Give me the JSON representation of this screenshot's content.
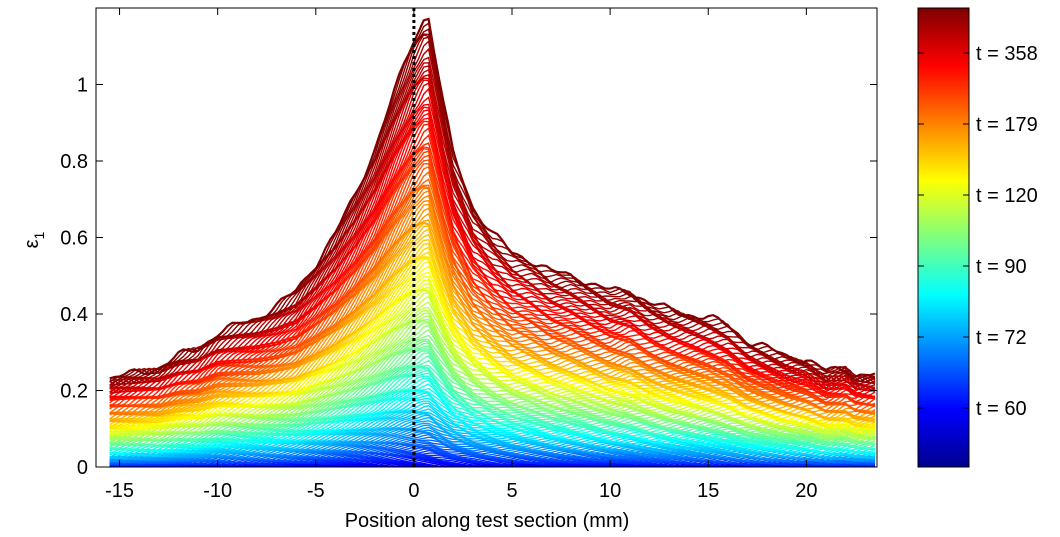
{
  "chart_data": {
    "type": "line",
    "title": "",
    "xlabel": "Position along test section (mm)",
    "ylabel": "ε",
    "ylabel_subscript": "1",
    "xlim": [
      -16.2,
      23.6
    ],
    "ylim": [
      0,
      1.2
    ],
    "xticks": [
      -15,
      -10,
      -5,
      0,
      5,
      10,
      15,
      20
    ],
    "xtick_labels": [
      "-15",
      "-10",
      "-5",
      "0",
      "5",
      "10",
      "15",
      "20"
    ],
    "yticks": [
      0,
      0.2,
      0.4,
      0.6,
      0.8,
      1.0
    ],
    "ytick_labels": [
      "0",
      "0.2",
      "0.4",
      "0.6",
      "0.8",
      "1"
    ],
    "grid": false,
    "colormap": "jet",
    "curve_count": 150,
    "reference_line": {
      "x": 0,
      "style": "dotted",
      "color": "#000000"
    },
    "envelope": {
      "x": [
        -15.5,
        -13,
        -12,
        -11,
        -10,
        -8,
        -7,
        -6,
        -5,
        -4,
        -3,
        -2,
        -1,
        0,
        0.7,
        1.5,
        2,
        3,
        4,
        5,
        6,
        7,
        8,
        9,
        10,
        11,
        12,
        13,
        14,
        15,
        16,
        17,
        18,
        19,
        20,
        21,
        22,
        22.5,
        23,
        23.6
      ],
      "y": [
        0.23,
        0.26,
        0.29,
        0.31,
        0.35,
        0.39,
        0.42,
        0.46,
        0.53,
        0.61,
        0.71,
        0.83,
        0.98,
        1.12,
        1.19,
        0.95,
        0.82,
        0.68,
        0.61,
        0.56,
        0.54,
        0.51,
        0.5,
        0.48,
        0.46,
        0.46,
        0.43,
        0.41,
        0.4,
        0.39,
        0.37,
        0.33,
        0.31,
        0.29,
        0.28,
        0.25,
        0.26,
        0.24,
        0.24,
        0.24
      ]
    },
    "colorbar": {
      "label_prefix": "t = ",
      "labels": [
        "t = 358",
        "t = 179",
        "t = 120",
        "t = 90",
        "t = 72",
        "t = 60"
      ],
      "colors": [
        "#7f0000",
        "#ff0000",
        "#ff7f00",
        "#ffff00",
        "#7fff7f",
        "#00ffff",
        "#007fff",
        "#0000ff",
        "#00008f"
      ]
    }
  }
}
